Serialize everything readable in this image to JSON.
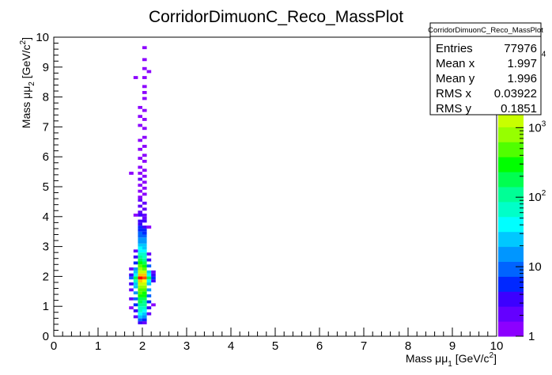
{
  "chart_data": {
    "type": "heatmap",
    "title": "CorridorDimuonC_Reco_MassPlot",
    "x_label": {
      "main": "Mass μμ",
      "sub": "1",
      "unit": " [GeV/c",
      "sup": "2",
      "end": "]"
    },
    "y_label": {
      "main": "Mass μμ",
      "sub": "2",
      "unit": " [GeV/c",
      "sup": "2",
      "end": "]"
    },
    "xlim": [
      0,
      10
    ],
    "ylim": [
      0,
      10
    ],
    "xticks": [
      0,
      1,
      2,
      3,
      4,
      5,
      6,
      7,
      8,
      9,
      10
    ],
    "yticks": [
      0,
      1,
      2,
      3,
      4,
      5,
      6,
      7,
      8,
      9,
      10
    ],
    "zlim": [
      1,
      20000
    ],
    "zscale": "log",
    "zticks": [
      {
        "value": 1,
        "label": "1"
      },
      {
        "value": 10,
        "label": "10"
      },
      {
        "value": 100,
        "label": "10",
        "sup": "2"
      },
      {
        "value": 1000,
        "label": "10",
        "sup": "3"
      },
      {
        "value": 10000,
        "label": "10",
        "sup": "4"
      }
    ],
    "palette": [
      "#8c00ff",
      "#6400ff",
      "#3c00ff",
      "#0028ff",
      "#0064ff",
      "#0096ff",
      "#00c8ff",
      "#00ffff",
      "#00ffc8",
      "#00ff96",
      "#00ff50",
      "#00ff00",
      "#50ff00",
      "#96ff00",
      "#c8ff00",
      "#ffff00",
      "#ffc800",
      "#ff9600",
      "#ff5000",
      "#ff0000"
    ],
    "cells": [
      [
        1.9,
        0.4,
        3
      ],
      [
        2.0,
        0.4,
        2
      ],
      [
        1.9,
        0.5,
        8
      ],
      [
        2.0,
        0.5,
        6
      ],
      [
        1.9,
        0.6,
        20
      ],
      [
        2.0,
        0.6,
        15
      ],
      [
        1.9,
        0.7,
        40
      ],
      [
        2.0,
        0.7,
        30
      ],
      [
        1.9,
        0.8,
        60
      ],
      [
        2.0,
        0.8,
        50
      ],
      [
        1.9,
        0.9,
        80
      ],
      [
        2.0,
        0.9,
        70
      ],
      [
        1.9,
        1.0,
        120
      ],
      [
        2.0,
        1.0,
        100
      ],
      [
        1.9,
        1.1,
        150
      ],
      [
        2.0,
        1.1,
        130
      ],
      [
        1.9,
        1.2,
        200
      ],
      [
        2.0,
        1.2,
        170
      ],
      [
        1.9,
        1.3,
        280
      ],
      [
        2.0,
        1.3,
        240
      ],
      [
        1.9,
        1.4,
        400
      ],
      [
        2.0,
        1.4,
        350
      ],
      [
        1.9,
        1.5,
        600
      ],
      [
        2.0,
        1.5,
        500
      ],
      [
        1.9,
        1.6,
        900
      ],
      [
        2.0,
        1.6,
        800
      ],
      [
        1.9,
        1.7,
        1500
      ],
      [
        2.0,
        1.7,
        1300
      ],
      [
        1.9,
        1.8,
        3000
      ],
      [
        2.0,
        1.8,
        2500
      ],
      [
        1.9,
        1.9,
        15000
      ],
      [
        2.0,
        1.9,
        12000
      ],
      [
        1.9,
        2.0,
        4000
      ],
      [
        2.0,
        2.0,
        3500
      ],
      [
        1.9,
        2.1,
        1500
      ],
      [
        2.0,
        2.1,
        1200
      ],
      [
        1.9,
        2.2,
        700
      ],
      [
        2.0,
        2.2,
        600
      ],
      [
        1.9,
        2.3,
        400
      ],
      [
        2.0,
        2.3,
        350
      ],
      [
        1.9,
        2.4,
        250
      ],
      [
        2.0,
        2.4,
        200
      ],
      [
        1.9,
        2.5,
        150
      ],
      [
        2.0,
        2.5,
        120
      ],
      [
        1.9,
        2.6,
        100
      ],
      [
        2.0,
        2.6,
        80
      ],
      [
        1.9,
        2.7,
        70
      ],
      [
        2.0,
        2.7,
        60
      ],
      [
        1.9,
        2.8,
        50
      ],
      [
        2.0,
        2.8,
        40
      ],
      [
        1.9,
        2.9,
        35
      ],
      [
        2.0,
        2.9,
        30
      ],
      [
        1.9,
        3.0,
        25
      ],
      [
        2.0,
        3.0,
        20
      ],
      [
        1.9,
        3.1,
        18
      ],
      [
        2.0,
        3.1,
        15
      ],
      [
        1.9,
        3.2,
        15
      ],
      [
        2.0,
        3.2,
        12
      ],
      [
        1.8,
        0.6,
        2
      ],
      [
        1.8,
        0.8,
        3
      ],
      [
        1.8,
        1.0,
        5
      ],
      [
        1.8,
        1.2,
        8
      ],
      [
        1.8,
        1.4,
        12
      ],
      [
        1.8,
        1.6,
        20
      ],
      [
        1.8,
        1.7,
        30
      ],
      [
        1.8,
        1.8,
        60
      ],
      [
        1.8,
        1.9,
        200
      ],
      [
        1.8,
        2.0,
        50
      ],
      [
        1.8,
        2.1,
        25
      ],
      [
        1.8,
        2.2,
        12
      ],
      [
        1.8,
        2.4,
        6
      ],
      [
        1.8,
        2.6,
        3
      ],
      [
        1.8,
        2.8,
        2
      ],
      [
        2.1,
        0.7,
        2
      ],
      [
        2.1,
        0.9,
        3
      ],
      [
        2.1,
        1.1,
        5
      ],
      [
        2.1,
        1.3,
        8
      ],
      [
        2.1,
        1.5,
        12
      ],
      [
        2.1,
        1.7,
        25
      ],
      [
        2.1,
        1.8,
        50
      ],
      [
        2.1,
        1.9,
        150
      ],
      [
        2.1,
        2.0,
        40
      ],
      [
        2.1,
        2.1,
        20
      ],
      [
        2.1,
        2.3,
        8
      ],
      [
        2.1,
        2.5,
        4
      ],
      [
        2.1,
        2.7,
        2
      ],
      [
        1.7,
        0.9,
        1
      ],
      [
        1.7,
        1.2,
        2
      ],
      [
        1.7,
        1.5,
        2
      ],
      [
        1.7,
        1.7,
        3
      ],
      [
        1.7,
        1.9,
        8
      ],
      [
        1.7,
        2.0,
        3
      ],
      [
        1.7,
        2.2,
        2
      ],
      [
        2.2,
        1.0,
        1
      ],
      [
        2.2,
        1.8,
        3
      ],
      [
        2.2,
        1.9,
        6
      ],
      [
        2.2,
        2.0,
        3
      ],
      [
        2.2,
        2.1,
        2
      ],
      [
        1.9,
        3.3,
        10
      ],
      [
        1.9,
        3.4,
        8
      ],
      [
        1.9,
        3.5,
        6
      ],
      [
        1.9,
        3.6,
        5
      ],
      [
        1.9,
        3.7,
        4
      ],
      [
        1.9,
        3.8,
        3
      ],
      [
        1.9,
        4.0,
        3
      ],
      [
        1.9,
        4.1,
        2
      ],
      [
        1.9,
        4.3,
        2
      ],
      [
        1.9,
        4.5,
        2
      ],
      [
        1.9,
        4.6,
        1
      ],
      [
        1.9,
        4.8,
        1
      ],
      [
        1.9,
        5.0,
        1
      ],
      [
        1.9,
        5.2,
        2
      ],
      [
        1.9,
        5.4,
        1
      ],
      [
        1.9,
        5.6,
        1
      ],
      [
        1.9,
        5.9,
        1
      ],
      [
        1.9,
        6.2,
        1
      ],
      [
        1.9,
        6.5,
        1
      ],
      [
        1.9,
        7.0,
        1
      ],
      [
        1.9,
        7.3,
        1
      ],
      [
        1.9,
        7.6,
        1
      ],
      [
        2.0,
        3.3,
        9
      ],
      [
        2.0,
        3.4,
        7
      ],
      [
        2.0,
        3.5,
        5
      ],
      [
        2.0,
        3.6,
        4
      ],
      [
        2.0,
        3.8,
        3
      ],
      [
        2.0,
        3.9,
        2
      ],
      [
        2.0,
        4.0,
        2
      ],
      [
        2.0,
        4.2,
        2
      ],
      [
        2.0,
        4.4,
        2
      ],
      [
        2.0,
        4.7,
        1
      ],
      [
        2.0,
        4.9,
        1
      ],
      [
        2.0,
        5.1,
        1
      ],
      [
        2.0,
        5.3,
        1
      ],
      [
        2.0,
        5.5,
        1
      ],
      [
        2.0,
        5.8,
        1
      ],
      [
        2.0,
        6.0,
        1
      ],
      [
        2.0,
        6.3,
        1
      ],
      [
        2.0,
        6.6,
        1
      ],
      [
        2.0,
        6.9,
        1
      ],
      [
        2.0,
        7.2,
        1
      ],
      [
        2.0,
        7.5,
        1
      ],
      [
        2.0,
        7.9,
        1
      ],
      [
        2.0,
        8.1,
        1
      ],
      [
        2.0,
        8.3,
        1
      ],
      [
        2.0,
        8.6,
        1
      ],
      [
        2.0,
        8.9,
        1
      ],
      [
        2.0,
        9.2,
        1
      ],
      [
        2.0,
        9.6,
        1
      ],
      [
        1.7,
        5.4,
        1
      ],
      [
        1.8,
        8.6,
        1
      ],
      [
        1.8,
        4.0,
        1
      ],
      [
        2.1,
        3.6,
        1
      ],
      [
        2.1,
        8.8,
        1
      ]
    ],
    "stats": {
      "title": "CorridorDimuonC_Reco_MassPlot",
      "rows": [
        {
          "name": "Entries",
          "value": 77976
        },
        {
          "name": "Mean x",
          "value": 1.997
        },
        {
          "name": "Mean y",
          "value": 1.996
        },
        {
          "name": "RMS x",
          "value": 0.03922
        },
        {
          "name": "RMS y",
          "value": 0.1851
        }
      ]
    }
  }
}
